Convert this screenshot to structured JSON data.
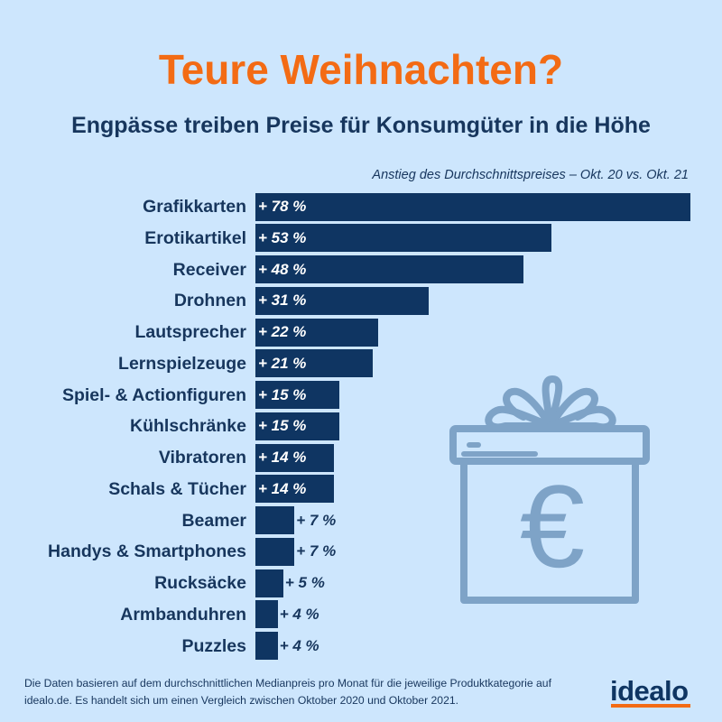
{
  "chart_data": {
    "type": "bar",
    "orientation": "horizontal",
    "title": "Teure Weihnachten?",
    "subtitle": "Engpässe treiben Preise für Konsumgüter in die Höhe",
    "xlabel": "Anstieg des Durchschnittspreises – Okt. 20 vs. Okt. 21",
    "ylabel": "",
    "xlim": [
      0,
      78
    ],
    "grid": false,
    "categories": [
      "Grafikkarten",
      "Erotikartikel",
      "Receiver",
      "Drohnen",
      "Lautsprecher",
      "Lernspielzeuge",
      "Spiel- & Actionfiguren",
      "Kühlschränke",
      "Vibratoren",
      "Schals & Tücher",
      "Beamer",
      "Handys & Smartphones",
      "Rucksäcke",
      "Armbanduhren",
      "Puzzles"
    ],
    "values": [
      78,
      53,
      48,
      31,
      22,
      21,
      15,
      15,
      14,
      14,
      7,
      7,
      5,
      4,
      4
    ],
    "value_labels": [
      "+ 78 %",
      "+ 53 %",
      "+ 48 %",
      "+ 31 %",
      "+ 22 %",
      "+ 21 %",
      "+ 15 %",
      "+ 15 %",
      "+ 14 %",
      "+ 14 %",
      "+ 7 %",
      "+ 7 %",
      "+ 5 %",
      "+ 4 %",
      "+ 4 %"
    ]
  },
  "footnote": "Die Daten basieren auf dem durchschnittlichen Medianpreis pro Monat für die jeweilige Produktkategorie auf idealo.de. Es handelt sich um einen Vergleich zwischen Oktober 2020 und Oktober 2021.",
  "logo": "idealo",
  "colors": {
    "background": "#cde6fd",
    "bar": "#0f3562",
    "title": "#f36b14",
    "icon": "#7ea3c7"
  }
}
